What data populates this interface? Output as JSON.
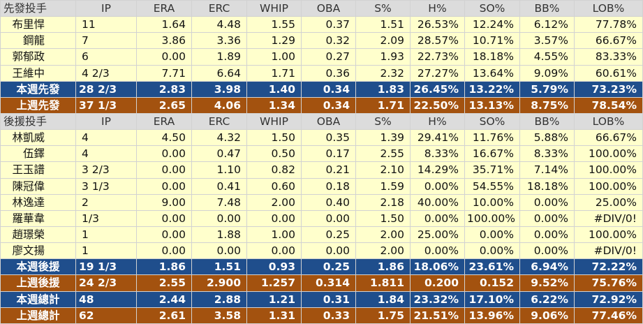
{
  "columns": [
    "IP",
    "ERA",
    "ERC",
    "WHIP",
    "OBA",
    "S%",
    "H%",
    "SO%",
    "BB%",
    "LOB%"
  ],
  "colors": {
    "header_bg": "#dcdcdc",
    "player_bg": "#ffffcc",
    "blue_bg": "#1f4e8c",
    "brown_bg": "#a3520f"
  },
  "starters": {
    "title": "先發投手",
    "rows": [
      {
        "name": "布里悍",
        "values": [
          "11",
          "1.64",
          "4.48",
          "1.55",
          "0.37",
          "1.51",
          "26.53%",
          "12.24%",
          "6.12%",
          "77.78%"
        ]
      },
      {
        "name": "鋼龍",
        "values": [
          "7",
          "3.86",
          "3.36",
          "1.29",
          "0.32",
          "2.09",
          "28.57%",
          "10.71%",
          "3.57%",
          "66.67%"
        ]
      },
      {
        "name": "郭郁政",
        "values": [
          "6",
          "0.00",
          "1.89",
          "1.00",
          "0.27",
          "1.93",
          "22.73%",
          "18.18%",
          "4.55%",
          "83.33%"
        ]
      },
      {
        "name": "王維中",
        "values": [
          "4 2/3",
          "7.71",
          "6.64",
          "1.71",
          "0.36",
          "2.32",
          "27.27%",
          "13.64%",
          "9.09%",
          "60.61%"
        ]
      }
    ],
    "this_week": {
      "name": "本週先發",
      "values": [
        "28 2/3",
        "2.83",
        "3.98",
        "1.40",
        "0.34",
        "1.83",
        "26.45%",
        "13.22%",
        "5.79%",
        "73.23%"
      ]
    },
    "last_week": {
      "name": "上週先發",
      "values": [
        "37 1/3",
        "2.65",
        "4.06",
        "1.34",
        "0.34",
        "1.71",
        "22.50%",
        "13.13%",
        "8.75%",
        "78.54%"
      ]
    }
  },
  "relievers": {
    "title": "後援投手",
    "rows": [
      {
        "name": "林凱威",
        "values": [
          "4",
          "4.50",
          "4.32",
          "1.50",
          "0.35",
          "1.39",
          "29.41%",
          "11.76%",
          "5.88%",
          "66.67%"
        ]
      },
      {
        "name": "伍鐸",
        "values": [
          "4",
          "0.00",
          "0.47",
          "0.50",
          "0.17",
          "2.55",
          "8.33%",
          "16.67%",
          "8.33%",
          "100.00%"
        ]
      },
      {
        "name": "王玉譜",
        "values": [
          "3 2/3",
          "0.00",
          "1.10",
          "0.82",
          "0.21",
          "2.10",
          "14.29%",
          "35.71%",
          "7.14%",
          "100.00%"
        ]
      },
      {
        "name": "陳冠偉",
        "values": [
          "3 1/3",
          "0.00",
          "0.41",
          "0.60",
          "0.18",
          "1.59",
          "0.00%",
          "54.55%",
          "18.18%",
          "100.00%"
        ]
      },
      {
        "name": "林逸達",
        "values": [
          "2",
          "9.00",
          "7.48",
          "2.00",
          "0.40",
          "2.18",
          "40.00%",
          "10.00%",
          "0.00%",
          "25.00%"
        ]
      },
      {
        "name": "羅華韋",
        "values": [
          "1/3",
          "0.00",
          "0.00",
          "0.00",
          "0.00",
          "1.50",
          "0.00%",
          "100.00%",
          "0.00%",
          "#DIV/0!"
        ]
      },
      {
        "name": "趙璟榮",
        "values": [
          "1",
          "0.00",
          "1.88",
          "1.00",
          "0.25",
          "2.00",
          "25.00%",
          "0.00%",
          "0.00%",
          "100.00%"
        ]
      },
      {
        "name": "廖文揚",
        "values": [
          "1",
          "0.00",
          "0.00",
          "0.00",
          "0.00",
          "2.00",
          "0.00%",
          "0.00%",
          "0.00%",
          "#DIV/0!"
        ]
      }
    ],
    "this_week": {
      "name": "本週後援",
      "values": [
        "19 1/3",
        "1.86",
        "1.51",
        "0.93",
        "0.25",
        "1.86",
        "18.06%",
        "23.61%",
        "6.94%",
        "72.22%"
      ]
    },
    "last_week": {
      "name": "上週後援",
      "values": [
        "24 2/3",
        "2.55",
        "2.900",
        "1.257",
        "0.314",
        "1.811",
        "0.200",
        "0.152",
        "9.52%",
        "75.76%"
      ]
    }
  },
  "totals": {
    "this_week": {
      "name": "本週總計",
      "values": [
        "48",
        "2.44",
        "2.88",
        "1.21",
        "0.31",
        "1.84",
        "23.32%",
        "17.10%",
        "6.22%",
        "72.92%"
      ]
    },
    "last_week": {
      "name": "上週總計",
      "values": [
        "62",
        "2.61",
        "3.58",
        "1.31",
        "0.33",
        "1.75",
        "21.51%",
        "13.96%",
        "9.06%",
        "77.46%"
      ]
    }
  }
}
